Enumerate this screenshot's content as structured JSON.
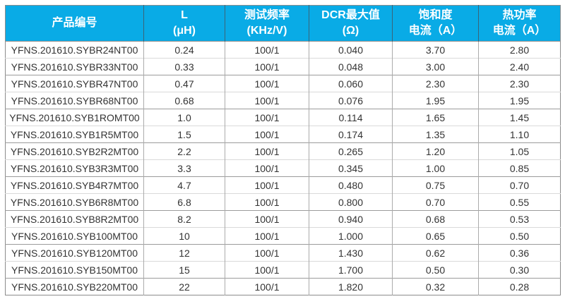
{
  "table": {
    "header_bg": "#09ABE6",
    "header_text_color": "#FFFFFF",
    "columns": [
      {
        "id": "product-code",
        "line1": "产品编号",
        "line2": ""
      },
      {
        "id": "inductance",
        "line1": "L",
        "line2": "(μH)"
      },
      {
        "id": "test-frequency",
        "line1": "测试频率",
        "line2": "(KHz/V)"
      },
      {
        "id": "dcr-max",
        "line1": "DCR最大值",
        "line2": "(Ω)"
      },
      {
        "id": "saturation-current",
        "line1": "饱和度",
        "line2": "电流（A）"
      },
      {
        "id": "thermal-current",
        "line1": "热功率",
        "line2": "电流（A）"
      }
    ],
    "rows": [
      [
        "YFNS.201610.SYBR24NT00",
        "0.24",
        "100/1",
        "0.040",
        "3.70",
        "2.80"
      ],
      [
        "YFNS.201610.SYBR33NT00",
        "0.33",
        "100/1",
        "0.048",
        "3.00",
        "2.40"
      ],
      [
        "YFNS.201610.SYBR47NT00",
        "0.47",
        "100/1",
        "0.060",
        "2.30",
        "2.30"
      ],
      [
        "YFNS.201610.SYBR68NT00",
        "0.68",
        "100/1",
        "0.076",
        "1.95",
        "1.95"
      ],
      [
        "YFNS.201610.SYB1ROMT00",
        "1.0",
        "100/1",
        "0.114",
        "1.65",
        "1.45"
      ],
      [
        "YFNS.201610.SYB1R5MT00",
        "1.5",
        "100/1",
        "0.174",
        "1.35",
        "1.10"
      ],
      [
        "YFNS.201610.SYB2R2MT00",
        "2.2",
        "100/1",
        "0.265",
        "1.20",
        "1.05"
      ],
      [
        "YFNS.201610.SYB3R3MT00",
        "3.3",
        "100/1",
        "0.345",
        "1.00",
        "0.85"
      ],
      [
        "YFNS.201610.SYB4R7MT00",
        "4.7",
        "100/1",
        "0.480",
        "0.75",
        "0.70"
      ],
      [
        "YFNS.201610.SYB6R8MT00",
        "6.8",
        "100/1",
        "0.800",
        "0.70",
        "0.55"
      ],
      [
        "YFNS.201610.SYB8R2MT00",
        "8.2",
        "100/1",
        "0.940",
        "0.68",
        "0.53"
      ],
      [
        "YFNS.201610.SYB100MT00",
        "10",
        "100/1",
        "1.000",
        "0.65",
        "0.50"
      ],
      [
        "YFNS.201610.SYB120MT00",
        "12",
        "100/1",
        "1.430",
        "0.62",
        "0.36"
      ],
      [
        "YFNS.201610.SYB150MT00",
        "15",
        "100/1",
        "1.700",
        "0.50",
        "0.30"
      ],
      [
        "YFNS.201610.SYB220MT00",
        "22",
        "100/1",
        "1.820",
        "0.32",
        "0.28"
      ]
    ]
  }
}
